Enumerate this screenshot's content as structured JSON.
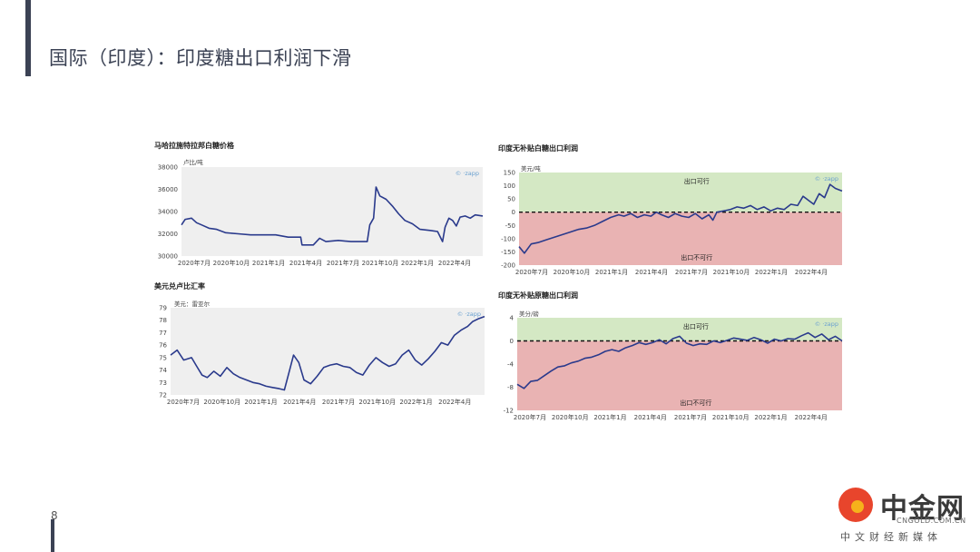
{
  "page": {
    "title": "国际（印度）：印度糖出口利润下滑",
    "page_number": "8",
    "logo": {
      "name": "中金网",
      "url": "CNGOLD.COM.CN",
      "subtitle": "中文财经新媒体"
    }
  },
  "colors": {
    "line": "#2a3a8c",
    "plot_bg": "#efefef",
    "green_zone": "#d4e8c4",
    "red_zone": "#e9b3b3",
    "title_text": "#3b4254",
    "watermark": "#6aa0d0"
  },
  "chart_data": [
    {
      "id": "c1",
      "type": "line",
      "title": "马哈拉施特拉邦白糖价格",
      "unit_label": "卢比/吨",
      "watermark": "© ·zapp",
      "ylim": [
        30000,
        38000
      ],
      "yticks": [
        "38000",
        "36000",
        "34000",
        "32000",
        "30000"
      ],
      "xticks": [
        "2020年7月",
        "2020年10月",
        "2021年1月",
        "2021年4月",
        "2021年7月",
        "2021年10月",
        "2022年1月",
        "2022年4月"
      ],
      "xlim": [
        0,
        24
      ],
      "series": [
        {
          "points": [
            [
              0,
              32800
            ],
            [
              0.3,
              33300
            ],
            [
              0.8,
              33400
            ],
            [
              1.2,
              33000
            ],
            [
              1.6,
              32800
            ],
            [
              2.2,
              32500
            ],
            [
              2.8,
              32400
            ],
            [
              3.5,
              32100
            ],
            [
              4.5,
              32000
            ],
            [
              5.5,
              31900
            ],
            [
              6.5,
              31900
            ],
            [
              7.5,
              31900
            ],
            [
              8.5,
              31700
            ],
            [
              9.5,
              31700
            ],
            [
              9.6,
              31000
            ],
            [
              10.5,
              31000
            ],
            [
              11,
              31600
            ],
            [
              11.5,
              31300
            ],
            [
              12.5,
              31400
            ],
            [
              13.5,
              31300
            ],
            [
              14.2,
              31300
            ],
            [
              14.8,
              31300
            ],
            [
              15,
              32800
            ],
            [
              15.3,
              33400
            ],
            [
              15.5,
              36200
            ],
            [
              15.8,
              35400
            ],
            [
              16.3,
              35100
            ],
            [
              16.8,
              34500
            ],
            [
              17.3,
              33800
            ],
            [
              17.8,
              33200
            ],
            [
              18.4,
              32900
            ],
            [
              19,
              32400
            ],
            [
              19.8,
              32300
            ],
            [
              20.4,
              32200
            ],
            [
              20.8,
              31300
            ],
            [
              21,
              32600
            ],
            [
              21.3,
              33400
            ],
            [
              21.6,
              33200
            ],
            [
              21.9,
              32700
            ],
            [
              22.2,
              33500
            ],
            [
              22.6,
              33600
            ],
            [
              23,
              33400
            ],
            [
              23.4,
              33700
            ],
            [
              24,
              33600
            ]
          ]
        }
      ]
    },
    {
      "id": "c2",
      "type": "line",
      "title": "印度无补贴白糖出口利润",
      "unit_label": "美元/吨",
      "watermark": "© ·zapp",
      "zone_labels": {
        "above": "出口可行",
        "below": "出口不可行"
      },
      "ylim": [
        -200,
        150
      ],
      "yticks": [
        "150",
        "100",
        "50",
        "0",
        "-50",
        "-100",
        "-150",
        "-200"
      ],
      "xticks": [
        "2020年7月",
        "2020年10月",
        "2021年1月",
        "2021年4月",
        "2021年7月",
        "2021年10月",
        "2022年1月",
        "2022年4月"
      ],
      "xlim": [
        0,
        24
      ],
      "series": [
        {
          "points": [
            [
              0,
              -130
            ],
            [
              0.4,
              -155
            ],
            [
              0.9,
              -120
            ],
            [
              1.4,
              -115
            ],
            [
              2,
              -105
            ],
            [
              2.6,
              -95
            ],
            [
              3.2,
              -85
            ],
            [
              3.8,
              -75
            ],
            [
              4.4,
              -65
            ],
            [
              5,
              -60
            ],
            [
              5.6,
              -50
            ],
            [
              6.2,
              -35
            ],
            [
              6.8,
              -20
            ],
            [
              7.4,
              -10
            ],
            [
              7.8,
              -15
            ],
            [
              8.3,
              -5
            ],
            [
              8.8,
              -20
            ],
            [
              9.3,
              -10
            ],
            [
              9.8,
              -15
            ],
            [
              10.2,
              0
            ],
            [
              10.6,
              -10
            ],
            [
              11.1,
              -20
            ],
            [
              11.6,
              -5
            ],
            [
              12.1,
              -15
            ],
            [
              12.6,
              -20
            ],
            [
              13.1,
              -5
            ],
            [
              13.6,
              -25
            ],
            [
              14.1,
              -10
            ],
            [
              14.4,
              -30
            ],
            [
              14.7,
              0
            ],
            [
              15.2,
              5
            ],
            [
              15.7,
              10
            ],
            [
              16.2,
              20
            ],
            [
              16.7,
              15
            ],
            [
              17.2,
              25
            ],
            [
              17.7,
              10
            ],
            [
              18.2,
              20
            ],
            [
              18.7,
              5
            ],
            [
              19.2,
              15
            ],
            [
              19.7,
              10
            ],
            [
              20.2,
              30
            ],
            [
              20.7,
              25
            ],
            [
              21.1,
              60
            ],
            [
              21.5,
              45
            ],
            [
              21.9,
              30
            ],
            [
              22.3,
              70
            ],
            [
              22.7,
              55
            ],
            [
              23.1,
              105
            ],
            [
              23.5,
              90
            ],
            [
              24,
              80
            ]
          ]
        }
      ]
    },
    {
      "id": "c3",
      "type": "line",
      "title": "美元兑卢比汇率",
      "unit_label": "美元：雷亚尔",
      "watermark": "© ·zapp",
      "ylim": [
        72,
        79
      ],
      "yticks": [
        "79",
        "78",
        "77",
        "76",
        "75",
        "74",
        "73",
        "72"
      ],
      "xticks": [
        "2020年7月",
        "2020年10月",
        "2021年1月",
        "2021年4月",
        "2021年7月",
        "2021年10月",
        "2022年1月",
        "2022年4月"
      ],
      "xlim": [
        0,
        24
      ],
      "series": [
        {
          "points": [
            [
              0,
              75.2
            ],
            [
              0.5,
              75.6
            ],
            [
              1,
              74.8
            ],
            [
              1.6,
              75.0
            ],
            [
              2,
              74.3
            ],
            [
              2.4,
              73.6
            ],
            [
              2.8,
              73.4
            ],
            [
              3.3,
              73.9
            ],
            [
              3.8,
              73.5
            ],
            [
              4.3,
              74.2
            ],
            [
              4.8,
              73.7
            ],
            [
              5.3,
              73.4
            ],
            [
              5.8,
              73.2
            ],
            [
              6.3,
              73.0
            ],
            [
              6.8,
              72.9
            ],
            [
              7.3,
              72.7
            ],
            [
              7.8,
              72.6
            ],
            [
              8.3,
              72.5
            ],
            [
              8.7,
              72.4
            ],
            [
              9.1,
              74.0
            ],
            [
              9.4,
              75.2
            ],
            [
              9.8,
              74.6
            ],
            [
              10.2,
              73.2
            ],
            [
              10.7,
              72.9
            ],
            [
              11.2,
              73.5
            ],
            [
              11.7,
              74.2
            ],
            [
              12.2,
              74.4
            ],
            [
              12.7,
              74.5
            ],
            [
              13.2,
              74.3
            ],
            [
              13.7,
              74.2
            ],
            [
              14.2,
              73.8
            ],
            [
              14.7,
              73.6
            ],
            [
              15.2,
              74.4
            ],
            [
              15.7,
              75.0
            ],
            [
              16.2,
              74.6
            ],
            [
              16.7,
              74.3
            ],
            [
              17.2,
              74.5
            ],
            [
              17.7,
              75.2
            ],
            [
              18.2,
              75.6
            ],
            [
              18.7,
              74.8
            ],
            [
              19.2,
              74.4
            ],
            [
              19.7,
              74.9
            ],
            [
              20.2,
              75.5
            ],
            [
              20.7,
              76.2
            ],
            [
              21.2,
              76.0
            ],
            [
              21.7,
              76.8
            ],
            [
              22.2,
              77.2
            ],
            [
              22.7,
              77.5
            ],
            [
              23.1,
              77.9
            ],
            [
              23.5,
              78.1
            ],
            [
              24,
              78.3
            ]
          ]
        }
      ]
    },
    {
      "id": "c4",
      "type": "line",
      "title": "印度无补贴原糖出口利润",
      "unit_label": "美分/磅",
      "watermark": "© ·zapp",
      "zone_labels": {
        "above": "出口可行",
        "below": "出口不可行"
      },
      "ylim": [
        -12,
        4
      ],
      "yticks": [
        "4",
        "0",
        "-4",
        "-8",
        "-12"
      ],
      "xticks": [
        "2020年7月",
        "2020年10月",
        "2021年1月",
        "2021年4月",
        "2021年7月",
        "2021年10月",
        "2022年1月",
        "2022年4月"
      ],
      "xlim": [
        0,
        24
      ],
      "series": [
        {
          "points": [
            [
              0,
              -7.5
            ],
            [
              0.5,
              -8.2
            ],
            [
              1,
              -7.0
            ],
            [
              1.5,
              -6.8
            ],
            [
              2,
              -6.0
            ],
            [
              2.5,
              -5.2
            ],
            [
              3,
              -4.5
            ],
            [
              3.5,
              -4.3
            ],
            [
              4,
              -3.8
            ],
            [
              4.5,
              -3.5
            ],
            [
              5,
              -3.0
            ],
            [
              5.5,
              -2.8
            ],
            [
              6,
              -2.4
            ],
            [
              6.5,
              -1.8
            ],
            [
              7,
              -1.5
            ],
            [
              7.5,
              -1.8
            ],
            [
              8,
              -1.2
            ],
            [
              8.5,
              -0.8
            ],
            [
              9,
              -0.3
            ],
            [
              9.5,
              -0.6
            ],
            [
              10,
              -0.3
            ],
            [
              10.5,
              0.2
            ],
            [
              11,
              -0.5
            ],
            [
              11.5,
              0.4
            ],
            [
              12,
              0.8
            ],
            [
              12.5,
              -0.4
            ],
            [
              13,
              -0.8
            ],
            [
              13.5,
              -0.5
            ],
            [
              14,
              -0.6
            ],
            [
              14.5,
              0.0
            ],
            [
              15,
              -0.3
            ],
            [
              15.5,
              0.1
            ],
            [
              16,
              0.5
            ],
            [
              16.5,
              0.3
            ],
            [
              17,
              0.1
            ],
            [
              17.5,
              0.6
            ],
            [
              18,
              0.2
            ],
            [
              18.5,
              -0.4
            ],
            [
              19,
              0.3
            ],
            [
              19.5,
              0.0
            ],
            [
              20,
              0.4
            ],
            [
              20.5,
              0.3
            ],
            [
              21,
              0.9
            ],
            [
              21.5,
              1.4
            ],
            [
              22,
              0.6
            ],
            [
              22.5,
              1.2
            ],
            [
              23,
              0.2
            ],
            [
              23.5,
              0.8
            ],
            [
              24,
              0.0
            ]
          ]
        }
      ]
    }
  ]
}
